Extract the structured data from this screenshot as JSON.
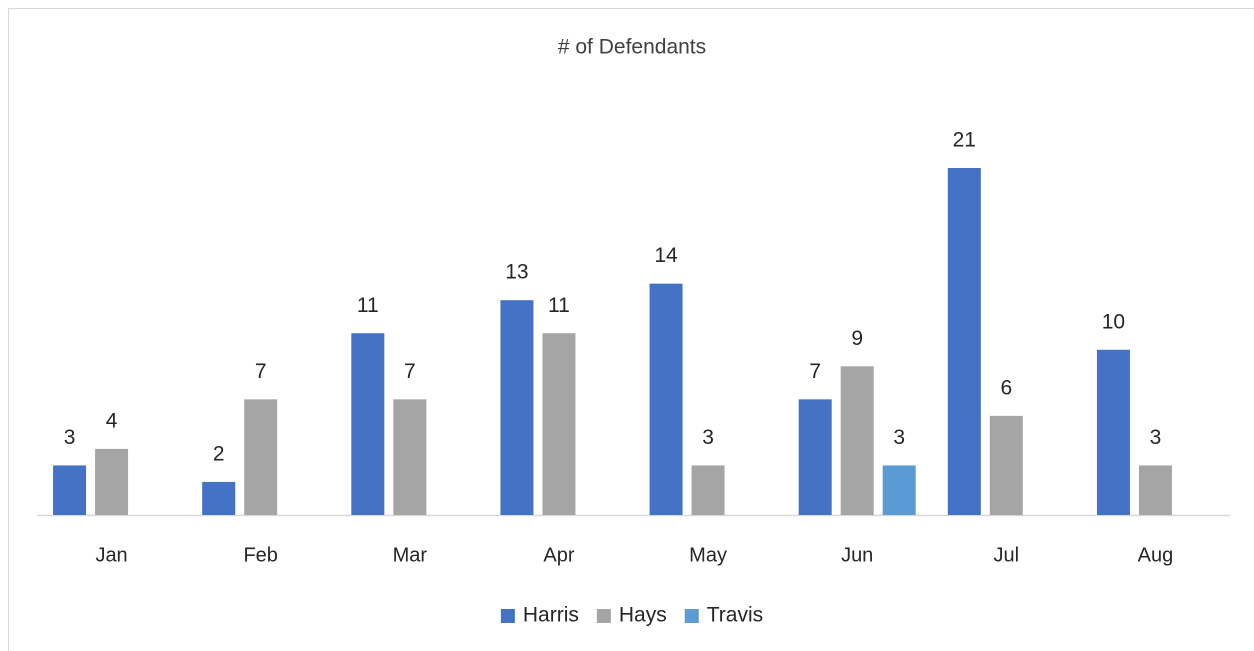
{
  "chart_data": {
    "type": "bar",
    "title": "# of Defendants",
    "categories": [
      "Jan",
      "Feb",
      "Mar",
      "Apr",
      "May",
      "Jun",
      "Jul",
      "Aug"
    ],
    "series": [
      {
        "name": "Harris",
        "color": "#4472c4",
        "values": [
          3,
          2,
          11,
          13,
          14,
          7,
          21,
          10
        ]
      },
      {
        "name": "Hays",
        "color": "#a5a5a5",
        "values": [
          4,
          7,
          7,
          11,
          3,
          9,
          6,
          3
        ]
      },
      {
        "name": "Travis",
        "color": "#5b9bd5",
        "values": [
          null,
          null,
          null,
          null,
          null,
          3,
          null,
          null
        ]
      }
    ],
    "legend": "bottom"
  }
}
